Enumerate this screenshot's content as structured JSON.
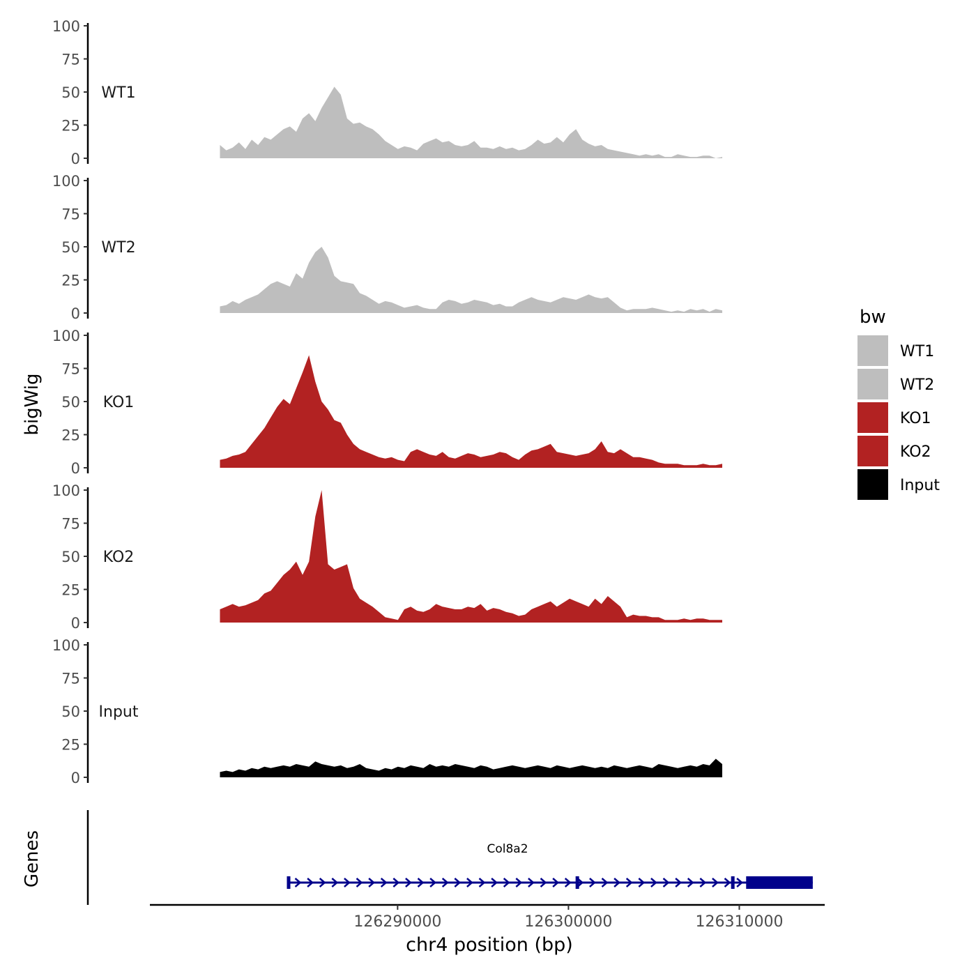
{
  "chart_data": {
    "type": "area",
    "ylabel": "bigWig",
    "genes_label": "Genes",
    "xlabel": "chr4 position (bp)",
    "xlim": [
      126275500,
      126315000
    ],
    "x_ticks": [
      126290000,
      126300000,
      126310000
    ],
    "x_tick_labels": [
      "126290000",
      "126300000",
      "126310000"
    ],
    "ylim": [
      0,
      100
    ],
    "y_ticks": [
      0,
      25,
      50,
      75,
      100
    ],
    "y_tick_labels": [
      "0",
      "25",
      "50",
      "75",
      "100"
    ],
    "x_start": 126279600,
    "x_end": 126309000,
    "tracks": [
      {
        "name": "WT1",
        "color": "#BEBEBE",
        "values": [
          10,
          6,
          8,
          12,
          7,
          14,
          10,
          16,
          14,
          18,
          22,
          24,
          20,
          30,
          34,
          28,
          38,
          46,
          54,
          48,
          30,
          26,
          27,
          24,
          22,
          18,
          13,
          10,
          7,
          9,
          8,
          6,
          11,
          13,
          15,
          12,
          13,
          10,
          9,
          10,
          13,
          8,
          8,
          7,
          9,
          7,
          8,
          6,
          7,
          10,
          14,
          11,
          12,
          16,
          12,
          18,
          22,
          14,
          11,
          9,
          10,
          7,
          6,
          5,
          4,
          3,
          2,
          3,
          2,
          3,
          1,
          1,
          3,
          2,
          1,
          1,
          2,
          2,
          0,
          1
        ]
      },
      {
        "name": "WT2",
        "color": "#BEBEBE",
        "values": [
          5,
          6,
          9,
          7,
          10,
          12,
          14,
          18,
          22,
          24,
          22,
          20,
          30,
          26,
          38,
          46,
          50,
          42,
          28,
          24,
          23,
          22,
          15,
          13,
          10,
          7,
          9,
          8,
          6,
          4,
          5,
          6,
          4,
          3,
          3,
          8,
          10,
          9,
          7,
          8,
          10,
          9,
          8,
          6,
          7,
          5,
          5,
          8,
          10,
          12,
          10,
          9,
          8,
          10,
          12,
          11,
          10,
          12,
          14,
          12,
          11,
          12,
          8,
          4,
          2,
          3,
          3,
          3,
          4,
          3,
          2,
          1,
          2,
          1,
          3,
          2,
          3,
          1,
          3,
          2
        ]
      },
      {
        "name": "KO1",
        "color": "#B22222",
        "values": [
          6,
          7,
          9,
          10,
          12,
          18,
          24,
          30,
          38,
          46,
          52,
          48,
          60,
          72,
          85,
          65,
          50,
          44,
          36,
          34,
          25,
          18,
          14,
          12,
          10,
          8,
          7,
          8,
          6,
          5,
          12,
          14,
          12,
          10,
          9,
          12,
          8,
          7,
          9,
          11,
          10,
          8,
          9,
          10,
          12,
          11,
          8,
          6,
          10,
          13,
          14,
          16,
          18,
          12,
          11,
          10,
          9,
          10,
          11,
          14,
          20,
          12,
          11,
          14,
          11,
          8,
          8,
          7,
          6,
          4,
          3,
          3,
          3,
          2,
          2,
          2,
          3,
          2,
          2,
          3
        ]
      },
      {
        "name": "KO2",
        "color": "#B22222",
        "values": [
          10,
          12,
          14,
          12,
          13,
          15,
          17,
          22,
          24,
          30,
          36,
          40,
          46,
          36,
          46,
          80,
          100,
          44,
          40,
          42,
          44,
          26,
          18,
          15,
          12,
          8,
          4,
          3,
          2,
          10,
          12,
          9,
          8,
          10,
          14,
          12,
          11,
          10,
          10,
          12,
          11,
          14,
          9,
          11,
          10,
          8,
          7,
          5,
          6,
          10,
          12,
          14,
          16,
          12,
          15,
          18,
          16,
          14,
          12,
          18,
          14,
          20,
          16,
          12,
          4,
          6,
          5,
          5,
          4,
          4,
          2,
          2,
          2,
          3,
          2,
          3,
          3,
          2,
          2,
          2
        ]
      },
      {
        "name": "Input",
        "color": "#000000",
        "values": [
          4,
          5,
          4,
          6,
          5,
          7,
          6,
          8,
          7,
          8,
          9,
          8,
          10,
          9,
          8,
          12,
          10,
          9,
          8,
          9,
          7,
          8,
          10,
          7,
          6,
          5,
          7,
          6,
          8,
          7,
          9,
          8,
          7,
          10,
          8,
          9,
          8,
          10,
          9,
          8,
          7,
          9,
          8,
          6,
          7,
          8,
          9,
          8,
          7,
          8,
          9,
          8,
          7,
          9,
          8,
          7,
          8,
          9,
          8,
          7,
          8,
          7,
          9,
          8,
          7,
          8,
          9,
          8,
          7,
          10,
          9,
          8,
          7,
          8,
          9,
          8,
          10,
          9,
          14,
          10
        ]
      }
    ],
    "gene": {
      "name": "Col8a2",
      "strand": "+",
      "tx_start": 126283600,
      "tx_end": 126314300,
      "utr_5": [
        126283600,
        126283800
      ],
      "exons": [
        [
          126300500,
          126300600
        ],
        [
          126309600,
          126309800
        ]
      ],
      "cds": [
        126310400,
        126314300
      ],
      "color": "#00008B"
    },
    "legend": {
      "title": "bw",
      "position": "right",
      "entries": [
        {
          "label": "WT1",
          "color": "#BEBEBE"
        },
        {
          "label": "WT2",
          "color": "#BEBEBE"
        },
        {
          "label": "KO1",
          "color": "#B22222"
        },
        {
          "label": "KO2",
          "color": "#B22222"
        },
        {
          "label": "Input",
          "color": "#000000"
        }
      ]
    }
  }
}
